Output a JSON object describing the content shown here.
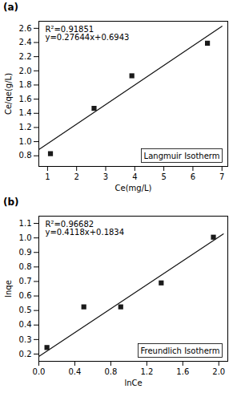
{
  "chart_data": [
    {
      "type": "scatter",
      "title": "(a)",
      "xlabel": "Ce(mg/L)",
      "ylabel": "Ce/qe(g/L)",
      "annotations": [
        "R²=0.91851",
        "y=0.27644x+0.6943",
        "Langmuir Isotherm"
      ],
      "xlim": [
        0.7,
        7.2
      ],
      "ylim": [
        0.65,
        2.7
      ],
      "xticks": [
        1,
        2,
        3,
        4,
        5,
        6,
        7
      ],
      "yticks": [
        0.8,
        {
          "value": 1.0,
          "label": "1.0"
        },
        1.2,
        1.4,
        1.6,
        1.8,
        {
          "value": 2.0,
          "label": "2.0"
        },
        2.2,
        2.4,
        2.6
      ],
      "series": [
        {
          "type": "scatter",
          "x": [
            1.1,
            2.6,
            3.9,
            6.5
          ],
          "values": [
            0.83,
            1.47,
            1.93,
            2.39
          ],
          "color": "#1a1a1a",
          "marker": "square"
        },
        {
          "type": "line",
          "x": [
            0.7,
            7.0
          ],
          "values": [
            0.887808,
            2.62938
          ],
          "color": "#111111"
        }
      ]
    },
    {
      "type": "scatter",
      "title": "(b)",
      "xlabel": "lnCe",
      "ylabel": "lnqe",
      "annotations": [
        "R²=0.96682",
        "y=0.4118x+0.1834",
        "Freundlich Isotherm"
      ],
      "xlim": [
        0.0,
        2.1
      ],
      "ylim": [
        0.15,
        1.15
      ],
      "xticks": [
        {
          "value": 0.0,
          "label": "0.0"
        },
        0.4,
        0.8,
        1.2,
        1.6,
        {
          "value": 2.0,
          "label": "2.0"
        }
      ],
      "yticks": [
        0.2,
        0.3,
        0.4,
        0.5,
        0.6,
        0.7,
        0.8,
        0.9,
        {
          "value": 1.0,
          "label": "1.0"
        },
        1.1
      ],
      "series": [
        {
          "type": "scatter",
          "x": [
            0.09,
            0.5,
            0.91,
            1.36,
            1.94
          ],
          "values": [
            0.245,
            0.525,
            0.525,
            0.69,
            1.005
          ],
          "color": "#1a1a1a",
          "marker": "square"
        },
        {
          "type": "line",
          "x": [
            0.0,
            2.05
          ],
          "values": [
            0.1834,
            1.02759
          ],
          "color": "#111111"
        }
      ]
    }
  ]
}
